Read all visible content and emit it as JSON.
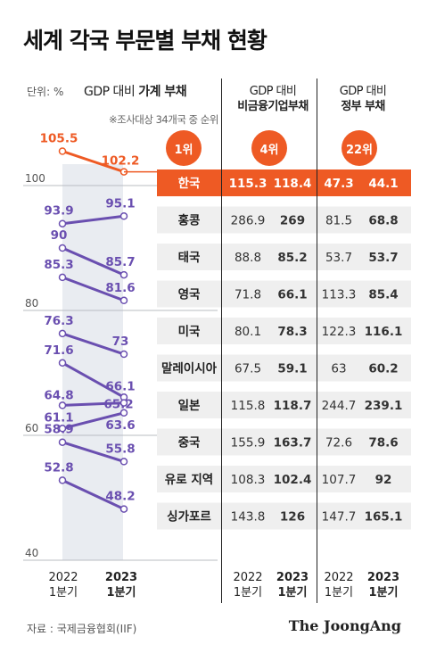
{
  "title": "세계 각국 부문별 부채 현황",
  "unit_label": "단위: %",
  "left_header": {
    "prefix": "GDP 대비 ",
    "bold": "가계 부채"
  },
  "note": "※조사대상 34개국 중 순위",
  "columns": [
    {
      "line1": "GDP 대비",
      "line2": "비금융기업부채",
      "rank": "4위"
    },
    {
      "line1": "GDP 대비",
      "line2": "정부 부채",
      "rank": "22위"
    }
  ],
  "household_rank": "1위",
  "years": {
    "y1_top": "2022",
    "y1_bottom": "1분기",
    "y2_top": "2023",
    "y2_bottom": "1분기"
  },
  "colors": {
    "accent": "#ee5a24",
    "series": "#6a4fb0",
    "shade": "#e9ecf1",
    "row_bg": "#efefef"
  },
  "source": "자료 : 국제금융협회(IIF)",
  "brand": "The JoongAng",
  "chart_data": {
    "type": "slope",
    "title": "세계 각국 부문별 부채 현황",
    "ylabel": "GDP 대비 가계 부채",
    "ylim": [
      40,
      110
    ],
    "yticks": [
      40,
      60,
      80,
      100
    ],
    "x": [
      "2022 1분기",
      "2023 1분기"
    ],
    "rows": [
      {
        "country": "한국",
        "household": [
          105.5,
          102.2
        ],
        "corporate": [
          "115.3",
          "118.4"
        ],
        "government": [
          "47.3",
          "44.1"
        ],
        "highlight": true
      },
      {
        "country": "홍콩",
        "household": [
          93.9,
          95.1
        ],
        "corporate": [
          "286.9",
          "269"
        ],
        "government": [
          "81.5",
          "68.8"
        ]
      },
      {
        "country": "태국",
        "household": [
          90,
          85.7
        ],
        "corporate": [
          "88.8",
          "85.2"
        ],
        "government": [
          "53.7",
          "53.7"
        ]
      },
      {
        "country": "영국",
        "household": [
          85.3,
          81.6
        ],
        "corporate": [
          "71.8",
          "66.1"
        ],
        "government": [
          "113.3",
          "85.4"
        ]
      },
      {
        "country": "미국",
        "household": [
          76.3,
          73
        ],
        "corporate": [
          "80.1",
          "78.3"
        ],
        "government": [
          "122.3",
          "116.1"
        ]
      },
      {
        "country": "말레이시아",
        "household": [
          71.6,
          66.1
        ],
        "corporate": [
          "67.5",
          "59.1"
        ],
        "government": [
          "63",
          "60.2"
        ]
      },
      {
        "country": "일본",
        "household": [
          64.8,
          65.2
        ],
        "corporate": [
          "115.8",
          "118.7"
        ],
        "government": [
          "244.7",
          "239.1"
        ]
      },
      {
        "country": "중국",
        "household": [
          61.1,
          63.6
        ],
        "corporate": [
          "155.9",
          "163.7"
        ],
        "government": [
          "72.6",
          "78.6"
        ]
      },
      {
        "country": "유로 지역",
        "household": [
          58.9,
          55.8
        ],
        "corporate": [
          "108.3",
          "102.4"
        ],
        "government": [
          "107.7",
          "92"
        ]
      },
      {
        "country": "싱가포르",
        "household": [
          52.8,
          48.2
        ],
        "corporate": [
          "143.8",
          "126"
        ],
        "government": [
          "147.7",
          "165.1"
        ]
      }
    ]
  }
}
